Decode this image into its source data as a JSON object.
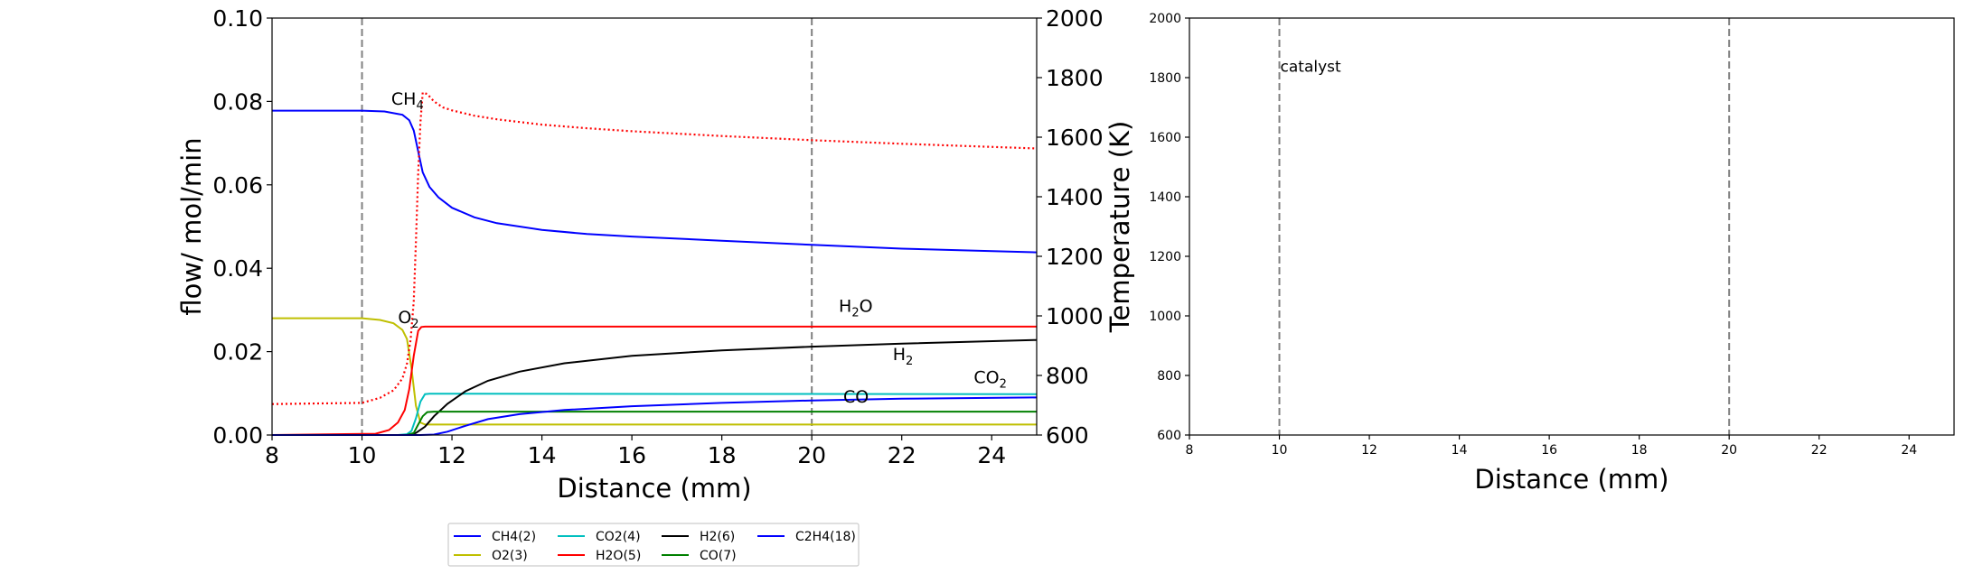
{
  "chart_data": [
    {
      "type": "line",
      "title": "",
      "xlabel": "Distance (mm)",
      "ylabel": "flow/ mol/min",
      "y2label": "Temperature (K)",
      "xlim": [
        8,
        25
      ],
      "ylim": [
        0,
        0.1
      ],
      "y2lim": [
        600,
        2000
      ],
      "xticks": [
        "8",
        "10",
        "12",
        "14",
        "16",
        "18",
        "20",
        "22",
        "24"
      ],
      "yticks": [
        "0.00",
        "0.02",
        "0.04",
        "0.06",
        "0.08",
        "0.10"
      ],
      "y2ticks": [
        "600",
        "800",
        "1000",
        "1200",
        "1400",
        "1600",
        "1800",
        "2000"
      ],
      "vlines": [
        10,
        20
      ],
      "grid": false,
      "legend_position": "below",
      "series": [
        {
          "name": "CH4(2)",
          "color": "#0000ff",
          "style": "solid",
          "x": [
            8,
            10,
            10.5,
            10.9,
            11.05,
            11.15,
            11.25,
            11.35,
            11.5,
            11.7,
            12,
            12.5,
            13,
            14,
            15,
            16,
            18,
            20,
            22,
            25
          ],
          "y": [
            0.0778,
            0.0778,
            0.0776,
            0.0768,
            0.0755,
            0.073,
            0.068,
            0.063,
            0.0595,
            0.057,
            0.0545,
            0.0522,
            0.0508,
            0.0492,
            0.0482,
            0.0476,
            0.0466,
            0.0456,
            0.0447,
            0.0438
          ]
        },
        {
          "name": "O2(3)",
          "color": "#bfbf00",
          "style": "solid",
          "x": [
            8,
            10,
            10.4,
            10.7,
            10.9,
            11.0,
            11.1,
            11.2,
            11.3,
            11.4,
            12,
            25
          ],
          "y": [
            0.028,
            0.028,
            0.0276,
            0.0268,
            0.0252,
            0.023,
            0.016,
            0.007,
            0.003,
            0.0025,
            0.0025,
            0.0025
          ]
        },
        {
          "name": "CO2(4)",
          "color": "#00bfbf",
          "style": "solid",
          "x": [
            8,
            10.8,
            11.0,
            11.1,
            11.2,
            11.3,
            11.4,
            11.5,
            12,
            25
          ],
          "y": [
            0,
            0,
            0.0002,
            0.001,
            0.004,
            0.008,
            0.0098,
            0.0099,
            0.0099,
            0.0098
          ]
        },
        {
          "name": "H2O(5)",
          "color": "#ff0000",
          "style": "solid",
          "x": [
            8,
            10.3,
            10.6,
            10.8,
            10.95,
            11.05,
            11.15,
            11.25,
            11.32,
            11.4,
            12,
            25
          ],
          "y": [
            0,
            0.0003,
            0.0012,
            0.003,
            0.006,
            0.011,
            0.019,
            0.025,
            0.0259,
            0.026,
            0.026,
            0.026
          ]
        },
        {
          "name": "H2(6)",
          "color": "#000000",
          "style": "solid",
          "x": [
            8,
            11.0,
            11.2,
            11.4,
            11.6,
            11.9,
            12.3,
            12.8,
            13.5,
            14.5,
            16,
            18,
            20,
            22,
            25
          ],
          "y": [
            0,
            0,
            0.0005,
            0.002,
            0.0045,
            0.0075,
            0.0105,
            0.013,
            0.0152,
            0.0172,
            0.019,
            0.0203,
            0.0212,
            0.0219,
            0.0228
          ]
        },
        {
          "name": "CO(7)",
          "color": "#008000",
          "style": "solid",
          "x": [
            8,
            11.0,
            11.15,
            11.25,
            11.35,
            11.45,
            11.6,
            12,
            25
          ],
          "y": [
            0,
            0,
            0.0005,
            0.0025,
            0.0045,
            0.0055,
            0.0056,
            0.0056,
            0.0056
          ]
        },
        {
          "name": "C2H4(18)",
          "color": "#0000ff",
          "style": "solid",
          "x": [
            8,
            11.0,
            11.3,
            11.6,
            11.9,
            12.3,
            12.8,
            13.5,
            14.5,
            16,
            18,
            20,
            22,
            25
          ],
          "y": [
            0,
            0,
            0,
            0.0001,
            0.0008,
            0.0022,
            0.0038,
            0.005,
            0.006,
            0.0069,
            0.0077,
            0.0083,
            0.0087,
            0.009
          ]
        },
        {
          "name": "",
          "color": "#ff0000",
          "style": "dotted",
          "axis": "right",
          "x": [
            8,
            10,
            10.4,
            10.7,
            10.9,
            11.0,
            11.08,
            11.15,
            11.2,
            11.25,
            11.3,
            11.35,
            11.45,
            11.6,
            11.8,
            12,
            12.5,
            13,
            14,
            15,
            16,
            18,
            20,
            22,
            25
          ],
          "y": [
            704,
            708,
            725,
            750,
            790,
            840,
            920,
            1050,
            1250,
            1480,
            1650,
            1750,
            1745,
            1720,
            1700,
            1690,
            1672,
            1660,
            1642,
            1630,
            1620,
            1604,
            1590,
            1578,
            1562
          ]
        }
      ],
      "annotations": [
        {
          "text": "CH",
          "sub": "4",
          "x": 10.65,
          "y": 0.0792,
          "color": "#0000ff"
        },
        {
          "text": "O",
          "sub": "2",
          "x": 10.8,
          "y": 0.0268,
          "color": "#bfbf00"
        },
        {
          "text": "H",
          "sub": "2",
          "after": "O",
          "x": 20.6,
          "y": 0.0295,
          "color": "#ff0000"
        },
        {
          "text": "H",
          "sub": "2",
          "x": 21.8,
          "y": 0.018,
          "color": "#000000"
        },
        {
          "text": "CO",
          "sub": "2",
          "x": 23.6,
          "y": 0.0125,
          "color": "#00bfbf"
        },
        {
          "text": "CO",
          "sub": "",
          "x": 20.7,
          "y": 0.0078,
          "color": "#008000"
        }
      ]
    },
    {
      "type": "line",
      "title": "",
      "xlabel": "Distance (mm)",
      "ylabel": "",
      "xlim": [
        8,
        25
      ],
      "ylim": [
        600,
        2000
      ],
      "xticks": [
        "8",
        "10",
        "12",
        "14",
        "16",
        "18",
        "20",
        "22",
        "24"
      ],
      "yticks": [
        "600",
        "800",
        "1000",
        "1200",
        "1400",
        "1600",
        "1800",
        "2000"
      ],
      "vlines": [
        10,
        20
      ],
      "grid": false,
      "series": [],
      "annotations": [
        {
          "text": "catalyst",
          "x": 10.02,
          "y": 1820,
          "color": "#000000"
        }
      ]
    }
  ],
  "legend": {
    "entries": [
      {
        "label": "CH4(2)",
        "color": "#0000ff"
      },
      {
        "label": "O2(3)",
        "color": "#bfbf00"
      },
      {
        "label": "CO2(4)",
        "color": "#00bfbf"
      },
      {
        "label": "H2O(5)",
        "color": "#ff0000"
      },
      {
        "label": "H2(6)",
        "color": "#000000"
      },
      {
        "label": "CO(7)",
        "color": "#008000"
      },
      {
        "label": "C2H4(18)",
        "color": "#0000ff"
      }
    ]
  }
}
